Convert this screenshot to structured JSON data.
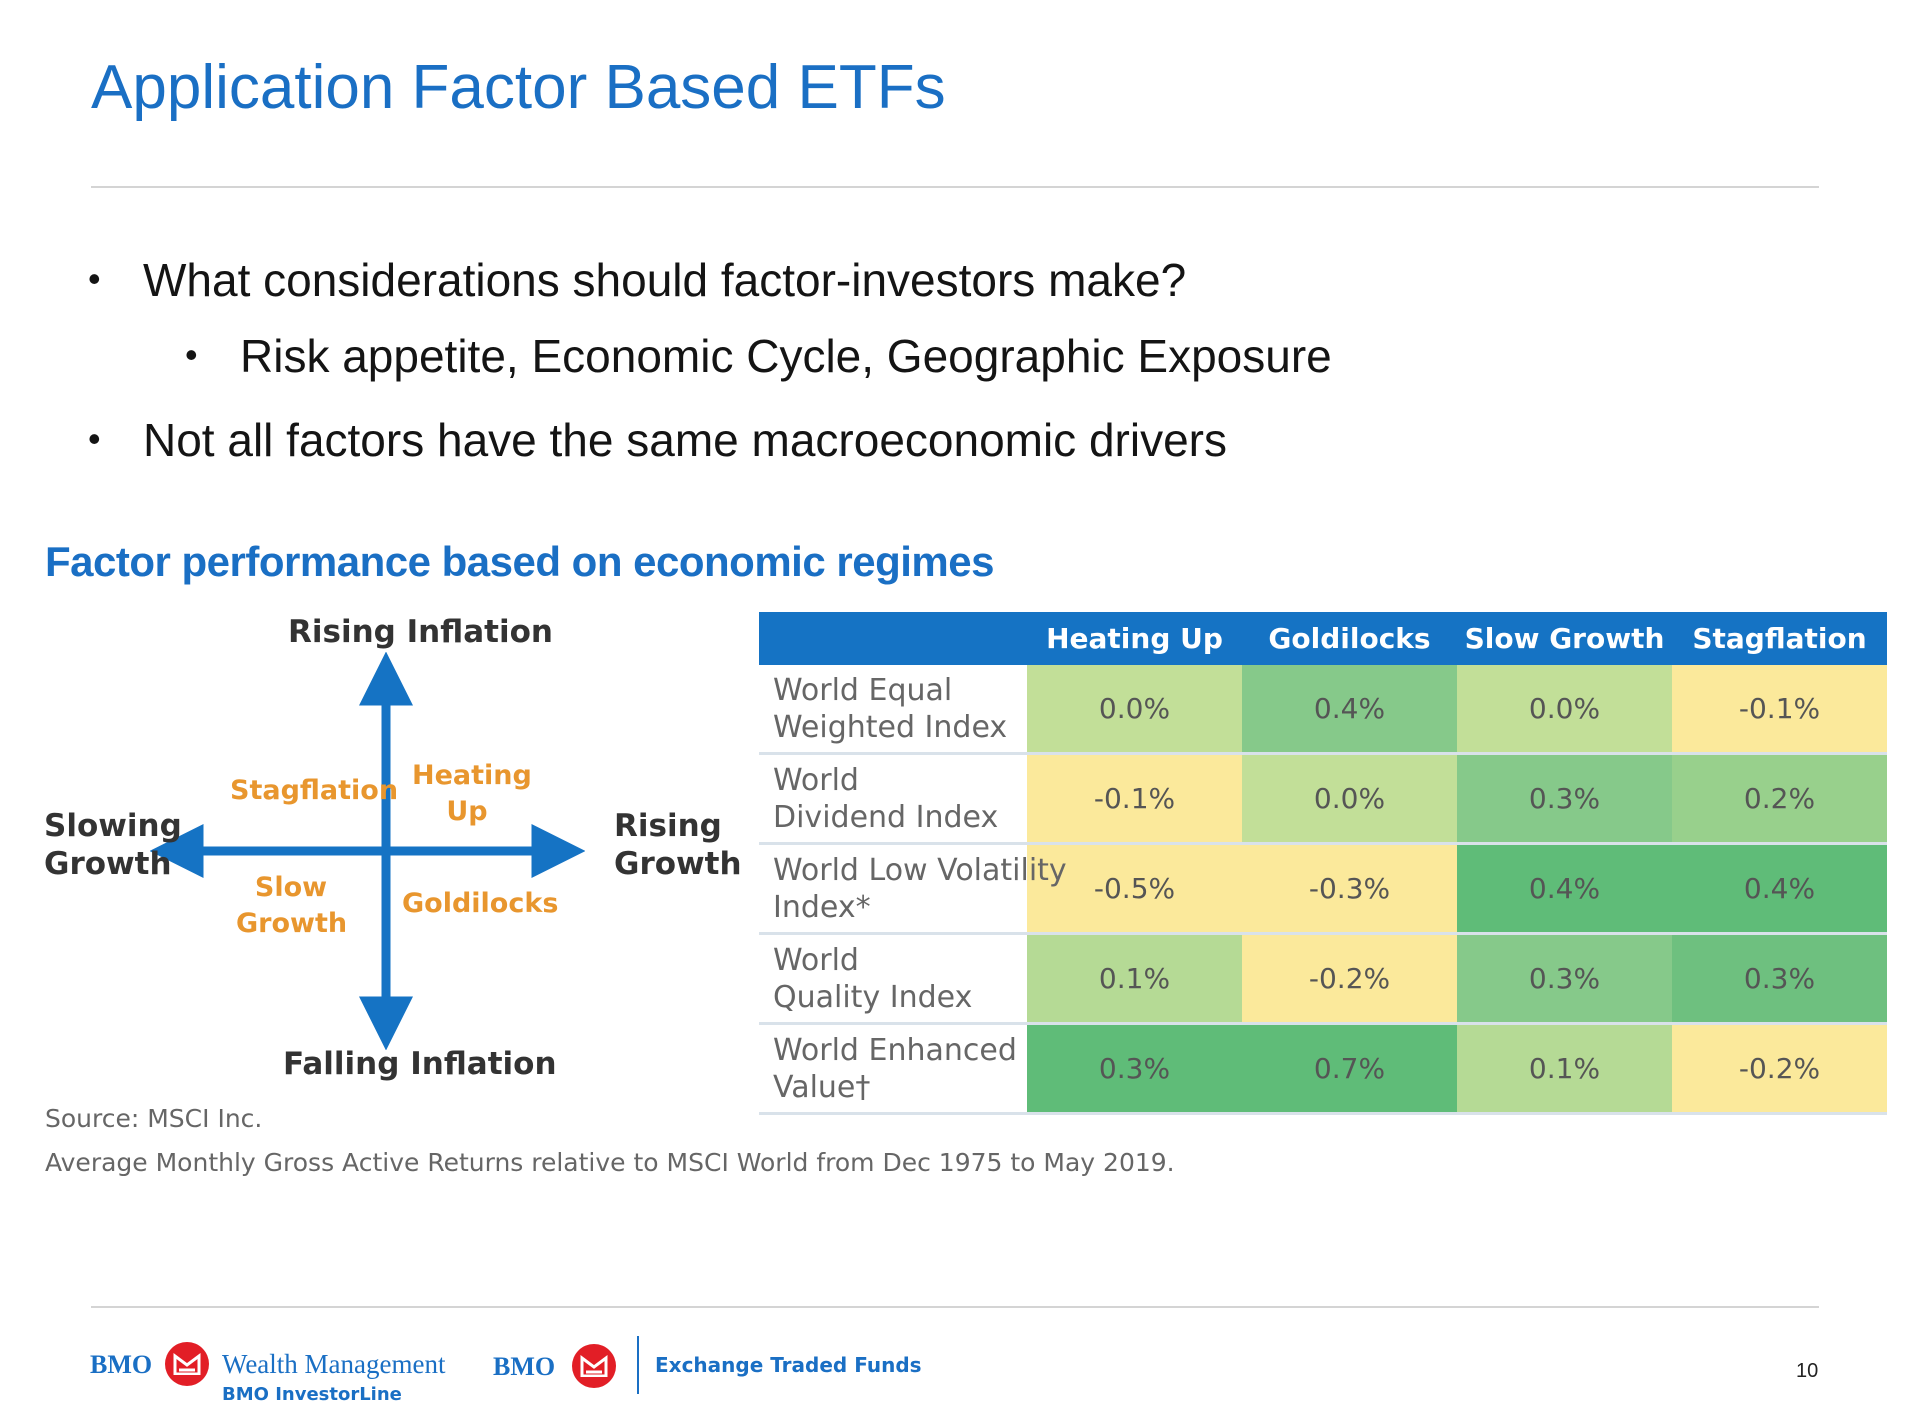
{
  "title": "Application Factor Based ETFs",
  "bullets": [
    {
      "text": "What considerations should factor-investors make?",
      "level": 1
    },
    {
      "text": "Risk appetite, Economic Cycle, Geographic Exposure",
      "level": 2
    },
    {
      "text": "Not all factors have the same macroeconomic drivers",
      "level": 1
    }
  ],
  "section_title": "Factor performance based on economic regimes",
  "diagram": {
    "top": "Rising Inflation",
    "bottom": "Falling Inflation",
    "left_line1": "Slowing",
    "left_line2": "Growth",
    "right_line1": "Rising",
    "right_line2": "Growth",
    "q_stagflation": "Stagflation",
    "q_heating_line1": "Heating",
    "q_heating_line2": "Up",
    "q_slow_line1": "Slow",
    "q_slow_line2": "Growth",
    "q_goldilocks": "Goldilocks",
    "arrow_color": "#1573c4",
    "quadrant_label_color": "#e8962e"
  },
  "table": {
    "headers": [
      "Heating Up",
      "Goldilocks",
      "Slow Growth",
      "Stagflation"
    ],
    "rows": [
      {
        "line1": "World Equal",
        "line2": "Weighted Index",
        "values": [
          "0.0%",
          "0.4%",
          "0.0%",
          "-0.1%"
        ],
        "colors": [
          "#c2df98",
          "#86c98a",
          "#c2df98",
          "#fbe99b"
        ]
      },
      {
        "line1": "World",
        "line2": "Dividend Index",
        "values": [
          "-0.1%",
          "0.0%",
          "0.3%",
          "0.2%"
        ],
        "colors": [
          "#fbe99b",
          "#c2df98",
          "#86c98a",
          "#98d08c"
        ]
      },
      {
        "line1": "World Low Volatility",
        "line2": "Index*",
        "values": [
          "-0.5%",
          "-0.3%",
          "0.4%",
          "0.4%"
        ],
        "colors": [
          "#fbe99b",
          "#fbe99b",
          "#5fbc78",
          "#5fbc78"
        ]
      },
      {
        "line1": "World",
        "line2": "Quality Index",
        "values": [
          "0.1%",
          "-0.2%",
          "0.3%",
          "0.3%"
        ],
        "colors": [
          "#b5da95",
          "#fbe99b",
          "#86c98a",
          "#6ec07f"
        ]
      },
      {
        "line1": "World Enhanced",
        "line2": "Value†",
        "values": [
          "0.3%",
          "0.7%",
          "0.1%",
          "-0.2%"
        ],
        "colors": [
          "#5fbc78",
          "#5fbc78",
          "#b5da95",
          "#fbe99b"
        ]
      }
    ]
  },
  "source_line1": "Source: MSCI Inc.",
  "source_line2": "Average Monthly Gross Active Returns relative to MSCI World from Dec 1975 to May 2019.",
  "footer": {
    "bmo1": "BMO",
    "wealth": "Wealth Management",
    "investorline": "BMO InvestorLine",
    "bmo2": "BMO",
    "etf": "Exchange Traded Funds",
    "page_number": "10",
    "brand_color": "#1a6fc4",
    "logo_color": "#e21e26"
  }
}
